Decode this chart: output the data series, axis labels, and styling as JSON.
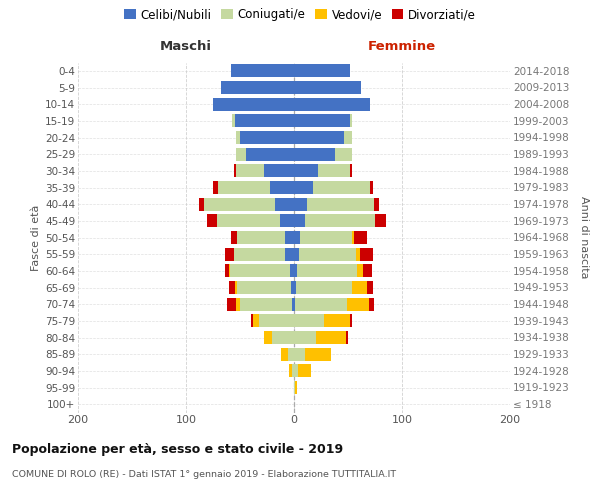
{
  "age_groups": [
    "100+",
    "95-99",
    "90-94",
    "85-89",
    "80-84",
    "75-79",
    "70-74",
    "65-69",
    "60-64",
    "55-59",
    "50-54",
    "45-49",
    "40-44",
    "35-39",
    "30-34",
    "25-29",
    "20-24",
    "15-19",
    "10-14",
    "5-9",
    "0-4"
  ],
  "birth_years": [
    "≤ 1918",
    "1919-1923",
    "1924-1928",
    "1929-1933",
    "1934-1938",
    "1939-1943",
    "1944-1948",
    "1949-1953",
    "1954-1958",
    "1959-1963",
    "1964-1968",
    "1969-1973",
    "1974-1978",
    "1979-1983",
    "1984-1988",
    "1989-1993",
    "1994-1998",
    "1999-2003",
    "2004-2008",
    "2009-2013",
    "2014-2018"
  ],
  "males_celibe": [
    0,
    0,
    0,
    0,
    0,
    0,
    2,
    3,
    4,
    8,
    8,
    13,
    18,
    22,
    28,
    44,
    50,
    55,
    75,
    68,
    58
  ],
  "males_coniugato": [
    0,
    0,
    2,
    6,
    20,
    32,
    48,
    50,
    55,
    48,
    45,
    58,
    65,
    48,
    26,
    10,
    4,
    2,
    0,
    0,
    0
  ],
  "males_vedovo": [
    0,
    0,
    3,
    6,
    8,
    6,
    4,
    2,
    1,
    0,
    0,
    0,
    0,
    0,
    0,
    0,
    0,
    0,
    0,
    0,
    0
  ],
  "males_divorziato": [
    0,
    0,
    0,
    0,
    0,
    2,
    8,
    5,
    4,
    8,
    5,
    10,
    5,
    5,
    2,
    0,
    0,
    0,
    0,
    0,
    0
  ],
  "females_nubile": [
    0,
    0,
    0,
    0,
    0,
    0,
    1,
    2,
    3,
    5,
    6,
    10,
    12,
    18,
    22,
    38,
    46,
    52,
    70,
    62,
    52
  ],
  "females_coniugata": [
    0,
    1,
    4,
    10,
    20,
    28,
    48,
    52,
    55,
    52,
    48,
    65,
    62,
    52,
    30,
    16,
    8,
    2,
    0,
    0,
    0
  ],
  "females_vedova": [
    0,
    2,
    12,
    24,
    28,
    24,
    20,
    14,
    6,
    4,
    2,
    0,
    0,
    0,
    0,
    0,
    0,
    0,
    0,
    0,
    0
  ],
  "females_divorziata": [
    0,
    0,
    0,
    0,
    2,
    2,
    5,
    5,
    8,
    12,
    12,
    10,
    5,
    3,
    2,
    0,
    0,
    0,
    0,
    0,
    0
  ],
  "color_celibe": "#4472c4",
  "color_coniugato": "#c5d9a0",
  "color_vedovo": "#ffc000",
  "color_divorziato": "#cc0000",
  "legend_labels": [
    "Celibi/Nubili",
    "Coniugati/e",
    "Vedovi/e",
    "Divorziati/e"
  ],
  "title": "Popolazione per età, sesso e stato civile - 2019",
  "subtitle": "COMUNE DI ROLO (RE) - Dati ISTAT 1° gennaio 2019 - Elaborazione TUTTITALIA.IT",
  "label_maschi": "Maschi",
  "label_femmine": "Femmine",
  "ylabel_left": "Fasce di età",
  "ylabel_right": "Anni di nascita",
  "bg_color": "#ffffff",
  "grid_color": "#cccccc",
  "bar_height": 0.78
}
